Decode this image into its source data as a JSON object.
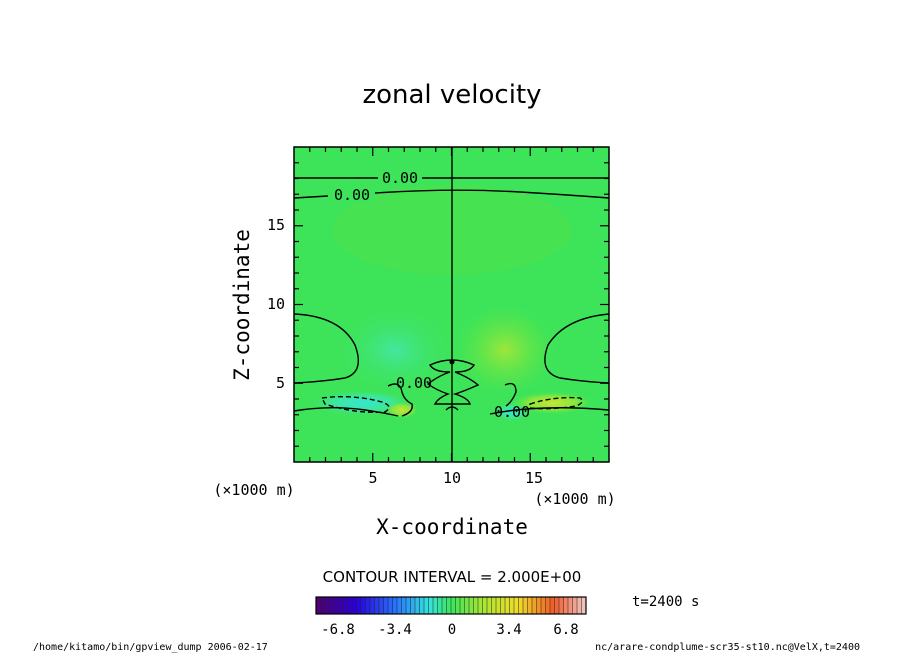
{
  "chart_data": {
    "type": "heatmap",
    "title": "zonal velocity",
    "xlabel": "X-coordinate",
    "ylabel": "Z-coordinate",
    "x_unit": "(×1000 m)",
    "y_unit": "(×1000 m)",
    "xlim": [
      0,
      20
    ],
    "ylim": [
      0,
      20
    ],
    "x_ticks": [
      "5",
      "10",
      "15"
    ],
    "y_ticks": [
      "5",
      "10",
      "15"
    ],
    "contour_label": "0.00",
    "contour_interval_text": "CONTOUR INTERVAL = 2.000E+00",
    "time_text": "t=2400 s",
    "colorbar": {
      "min": -8.5,
      "max": 8.5,
      "ticks": [
        "-6.8",
        "-3.4",
        "0",
        "3.4",
        "6.8"
      ],
      "tick_values": [
        -6.8,
        -3.4,
        0,
        3.4,
        6.8
      ]
    },
    "footer_left": "/home/kitamo/bin/gpview_dump  2006-02-17",
    "footer_right": "nc/arare-condplume-scr35-st10.nc@VelX,t=2400",
    "colors": {
      "background_field": "#33e633",
      "negative_blob": "#33e6cc",
      "positive_blob": "#b3e633"
    }
  }
}
